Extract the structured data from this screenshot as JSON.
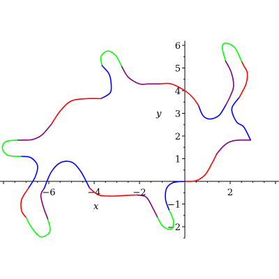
{
  "chart_data": {
    "type": "line",
    "title": "",
    "xlabel": "x",
    "ylabel": "y",
    "xlim": [
      -8.2,
      4.2
    ],
    "ylim": [
      -2.5,
      6.2
    ],
    "x_ticks": [
      -6,
      -4,
      -2,
      2
    ],
    "x_tick_labels": [
      "−6",
      "−4",
      "−2",
      "2"
    ],
    "y_ticks": [
      -2,
      -1,
      1,
      2,
      3,
      4,
      5,
      6
    ],
    "y_tick_labels": [
      "−2",
      "−1",
      "1",
      "2",
      "3",
      "4",
      "5",
      "6"
    ],
    "grid": false,
    "legend": "none",
    "colors": {
      "red": "#ff0000",
      "purple": "#800080",
      "blue": "#0000ff",
      "green": "#00ff00"
    },
    "segments": [
      {
        "color": "red",
        "points": [
          [
            0,
            0
          ],
          [
            0.5,
            0.03
          ],
          [
            0.9,
            0.3
          ],
          [
            1.2,
            0.8
          ],
          [
            1.4,
            1.2
          ]
        ]
      },
      {
        "color": "purple",
        "points": [
          [
            1.4,
            1.2
          ],
          [
            1.7,
            1.55
          ],
          [
            2.0,
            1.75
          ],
          [
            2.4,
            1.82
          ],
          [
            2.9,
            1.82
          ]
        ]
      },
      {
        "color": "blue",
        "points": [
          [
            2.9,
            1.82
          ],
          [
            2.6,
            2.4
          ],
          [
            2.3,
            2.6
          ],
          [
            2.1,
            3.0
          ],
          [
            2.1,
            3.3
          ],
          [
            2.4,
            3.7
          ]
        ]
      },
      {
        "color": "red",
        "points": [
          [
            2.4,
            3.7
          ],
          [
            2.7,
            4.3
          ],
          [
            2.75,
            4.8
          ],
          [
            2.6,
            5.1
          ],
          [
            2.5,
            5.3
          ]
        ]
      },
      {
        "color": "green",
        "points": [
          [
            2.5,
            5.3
          ],
          [
            2.2,
            5.9
          ],
          [
            1.8,
            6.1
          ],
          [
            1.65,
            5.9
          ],
          [
            1.8,
            5.3
          ]
        ]
      },
      {
        "color": "purple",
        "points": [
          [
            1.8,
            5.3
          ],
          [
            2.05,
            4.8
          ],
          [
            2.15,
            4.2
          ],
          [
            2.0,
            3.75
          ],
          [
            1.8,
            3.35
          ]
        ]
      },
      {
        "color": "blue",
        "points": [
          [
            1.8,
            3.35
          ],
          [
            1.5,
            2.9
          ],
          [
            1.1,
            2.75
          ],
          [
            0.8,
            2.9
          ],
          [
            0.6,
            3.35
          ]
        ]
      },
      {
        "color": "red",
        "points": [
          [
            0.6,
            3.35
          ],
          [
            0.35,
            3.7
          ],
          [
            0,
            4.0
          ],
          [
            -0.6,
            4.3
          ],
          [
            -1.1,
            4.3
          ]
        ]
      },
      {
        "color": "purple",
        "points": [
          [
            -1.1,
            4.3
          ],
          [
            -1.6,
            4.3
          ],
          [
            -2.0,
            4.3
          ],
          [
            -2.5,
            4.6
          ],
          [
            -2.8,
            5.1
          ]
        ]
      },
      {
        "color": "green",
        "points": [
          [
            -2.8,
            5.1
          ],
          [
            -3.05,
            5.55
          ],
          [
            -3.4,
            5.75
          ],
          [
            -3.7,
            5.5
          ],
          [
            -3.65,
            5.1
          ]
        ]
      },
      {
        "color": "blue",
        "points": [
          [
            -3.65,
            5.1
          ],
          [
            -3.35,
            4.75
          ],
          [
            -3.25,
            4.3
          ],
          [
            -3.3,
            3.9
          ],
          [
            -3.7,
            3.65
          ]
        ]
      },
      {
        "color": "red",
        "points": [
          [
            -3.7,
            3.65
          ],
          [
            -4.3,
            3.65
          ],
          [
            -5.0,
            3.55
          ],
          [
            -5.5,
            3.1
          ],
          [
            -5.9,
            2.5
          ]
        ]
      },
      {
        "color": "purple",
        "points": [
          [
            -5.9,
            2.5
          ],
          [
            -6.3,
            2.05
          ],
          [
            -6.7,
            1.85
          ],
          [
            -7.1,
            1.82
          ],
          [
            -7.4,
            1.82
          ]
        ]
      },
      {
        "color": "green",
        "points": [
          [
            -7.4,
            1.82
          ],
          [
            -7.9,
            1.75
          ],
          [
            -8.05,
            1.45
          ],
          [
            -7.8,
            1.15
          ],
          [
            -7.2,
            1.1
          ]
        ]
      },
      {
        "color": "blue",
        "points": [
          [
            -7.2,
            1.1
          ],
          [
            -6.8,
            1.05
          ],
          [
            -6.5,
            0.7
          ],
          [
            -6.6,
            0.2
          ],
          [
            -6.9,
            -0.3
          ]
        ]
      },
      {
        "color": "red",
        "points": [
          [
            -6.9,
            -0.3
          ],
          [
            -7.2,
            -0.8
          ],
          [
            -7.2,
            -1.3
          ],
          [
            -7.0,
            -1.6
          ]
        ]
      },
      {
        "color": "green",
        "points": [
          [
            -7.0,
            -1.6
          ],
          [
            -6.75,
            -2.05
          ],
          [
            -6.35,
            -2.45
          ],
          [
            -5.95,
            -2.2
          ],
          [
            -6.05,
            -1.65
          ]
        ]
      },
      {
        "color": "purple",
        "points": [
          [
            -6.05,
            -1.65
          ],
          [
            -6.25,
            -1.1
          ],
          [
            -6.35,
            -0.6
          ],
          [
            -6.2,
            -0.3
          ]
        ]
      },
      {
        "color": "blue",
        "points": [
          [
            -6.2,
            -0.3
          ],
          [
            -5.9,
            0.4
          ],
          [
            -5.5,
            0.82
          ],
          [
            -5.0,
            0.85
          ],
          [
            -4.6,
            0.45
          ],
          [
            -4.2,
            -0.3
          ]
        ]
      },
      {
        "color": "red",
        "points": [
          [
            -4.2,
            -0.3
          ],
          [
            -3.8,
            -0.6
          ],
          [
            -3.2,
            -0.65
          ],
          [
            -2.6,
            -0.62
          ],
          [
            -2.1,
            -0.6
          ]
        ]
      },
      {
        "color": "purple",
        "points": [
          [
            -2.1,
            -0.6
          ],
          [
            -1.7,
            -0.7
          ],
          [
            -1.4,
            -1.2
          ],
          [
            -1.2,
            -1.6
          ]
        ]
      },
      {
        "color": "green",
        "points": [
          [
            -1.2,
            -1.6
          ],
          [
            -0.95,
            -2.0
          ],
          [
            -0.6,
            -2.1
          ],
          [
            -0.5,
            -1.75
          ],
          [
            -0.7,
            -1.25
          ]
        ]
      },
      {
        "color": "blue",
        "points": [
          [
            -0.7,
            -1.25
          ],
          [
            -0.85,
            -0.8
          ],
          [
            -0.8,
            -0.3
          ],
          [
            -0.5,
            -0.05
          ],
          [
            0,
            0
          ]
        ]
      }
    ]
  }
}
